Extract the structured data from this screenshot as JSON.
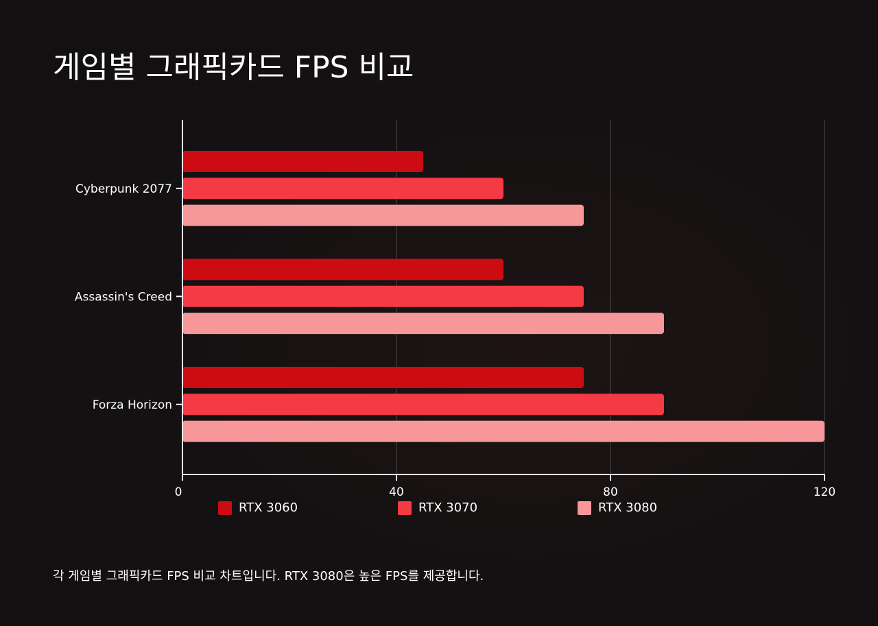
{
  "chart_data": {
    "type": "bar",
    "orientation": "horizontal",
    "title": "게임별 그래픽카드 FPS 비교",
    "categories": [
      "Cyberpunk 2077",
      "Assassin's Creed",
      "Forza Horizon"
    ],
    "series": [
      {
        "name": "RTX 3060",
        "values": [
          45,
          60,
          75
        ],
        "color": "#cc0c12"
      },
      {
        "name": "RTX 3070",
        "values": [
          60,
          75,
          90
        ],
        "color": "#f43a45"
      },
      {
        "name": "RTX 3080",
        "values": [
          75,
          90,
          120
        ],
        "color": "#f8979a"
      }
    ],
    "xlim": [
      0,
      120
    ],
    "xticks": [
      0,
      40,
      80,
      120
    ],
    "grid": true,
    "legend_position": "bottom"
  },
  "caption": "각 게임별 그래픽카드 FPS 비교 차트입니다. RTX 3080은 높은 FPS를 제공합니다.",
  "colors": {
    "background": "#151112",
    "gridline": "#4a4646",
    "axis": "#ffffff"
  }
}
